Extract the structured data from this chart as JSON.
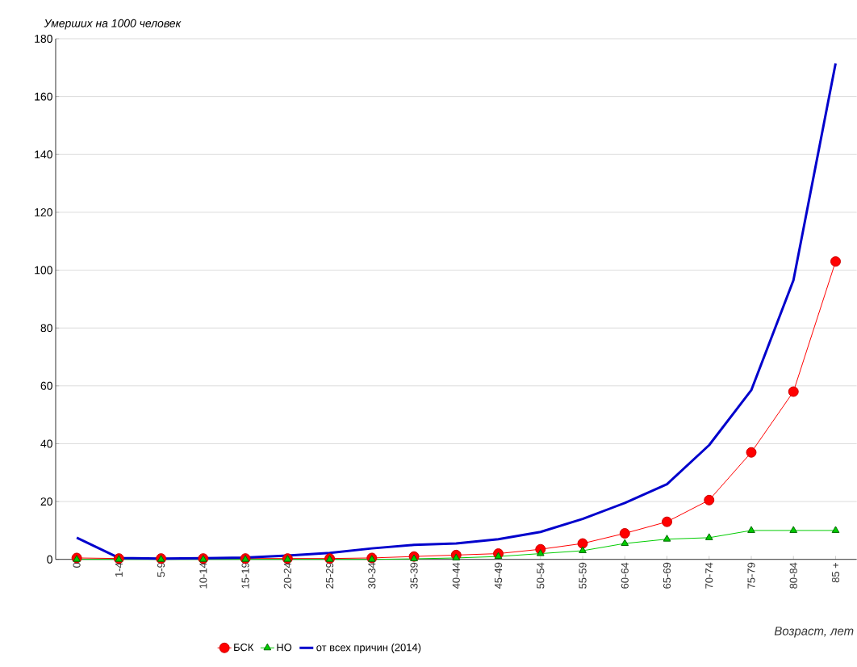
{
  "chart_data": {
    "type": "line",
    "ylabel": "Умерших на 1000 человек",
    "xlabel": "Возраст, лет",
    "categories": [
      "0",
      "1-4",
      "5-9",
      "10-14",
      "15-19",
      "20-24",
      "25-29",
      "30-34",
      "35-39",
      "40-44",
      "45-49",
      "50-54",
      "55-59",
      "60-64",
      "65-69",
      "70-74",
      "75-79",
      "80-84",
      "85 +"
    ],
    "series": [
      {
        "name": "БСК",
        "color": "#ff0000",
        "marker": "circle",
        "values": [
          0.5,
          0.3,
          0.3,
          0.3,
          0.3,
          0.3,
          0.3,
          0.5,
          1,
          1.5,
          2,
          3.5,
          5.5,
          9,
          13,
          20.5,
          37,
          58,
          103
        ]
      },
      {
        "name": "НО",
        "color": "#00cc00",
        "marker": "triangle",
        "values": [
          0,
          0,
          0,
          0,
          0,
          0,
          0,
          0,
          0.2,
          0.5,
          1,
          2,
          3,
          5.5,
          7,
          7.5,
          10,
          10,
          10
        ]
      },
      {
        "name": "от всех причин (2014)",
        "color": "#0000cc",
        "marker": "none",
        "values": [
          7.5,
          0.5,
          0.3,
          0.4,
          0.6,
          1.3,
          2.2,
          3.8,
          5,
          5.5,
          7,
          9.5,
          14,
          19.5,
          26,
          39.5,
          58.5,
          96.5,
          171.5
        ]
      }
    ],
    "ylim": [
      0,
      180
    ],
    "yticks": [
      0,
      20,
      40,
      60,
      80,
      100,
      120,
      140,
      160,
      180
    ],
    "grid": "y",
    "legend": "bottom"
  }
}
